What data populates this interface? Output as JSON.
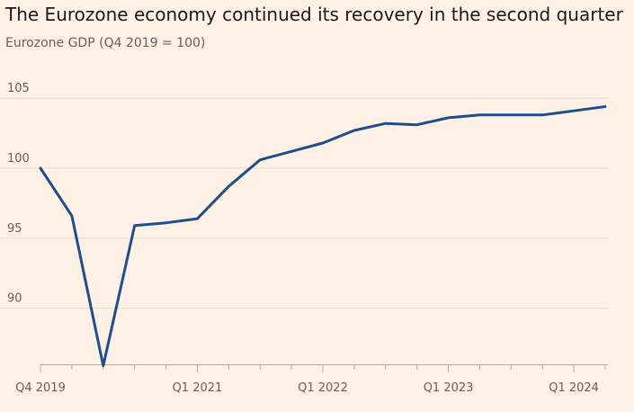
{
  "chart_data": {
    "type": "line",
    "title": "The Eurozone economy continued its recovery in the second quarter",
    "subtitle": "Eurozone GDP (Q4 2019 = 100)",
    "xlabel": "",
    "ylabel": "",
    "ylim": [
      86,
      107
    ],
    "y_ticks": [
      90,
      95,
      100,
      105
    ],
    "grid": true,
    "x": [
      "Q4 2019",
      "Q1 2020",
      "Q2 2020",
      "Q3 2020",
      "Q4 2020",
      "Q1 2021",
      "Q2 2021",
      "Q3 2021",
      "Q4 2021",
      "Q1 2022",
      "Q2 2022",
      "Q3 2022",
      "Q4 2022",
      "Q1 2023",
      "Q2 2023",
      "Q3 2023",
      "Q4 2023",
      "Q1 2024",
      "Q2 2024"
    ],
    "x_tick_labels": [
      "Q4 2019",
      "Q1 2021",
      "Q1 2022",
      "Q1 2023",
      "Q1 2024"
    ],
    "series": [
      {
        "name": "",
        "color": "#1F4E8C",
        "values": [
          100.0,
          96.6,
          85.9,
          95.9,
          96.1,
          96.4,
          98.7,
          100.6,
          101.2,
          101.8,
          102.7,
          103.2,
          103.1,
          103.6,
          103.8,
          103.8,
          103.8,
          104.1,
          104.4
        ]
      }
    ]
  }
}
